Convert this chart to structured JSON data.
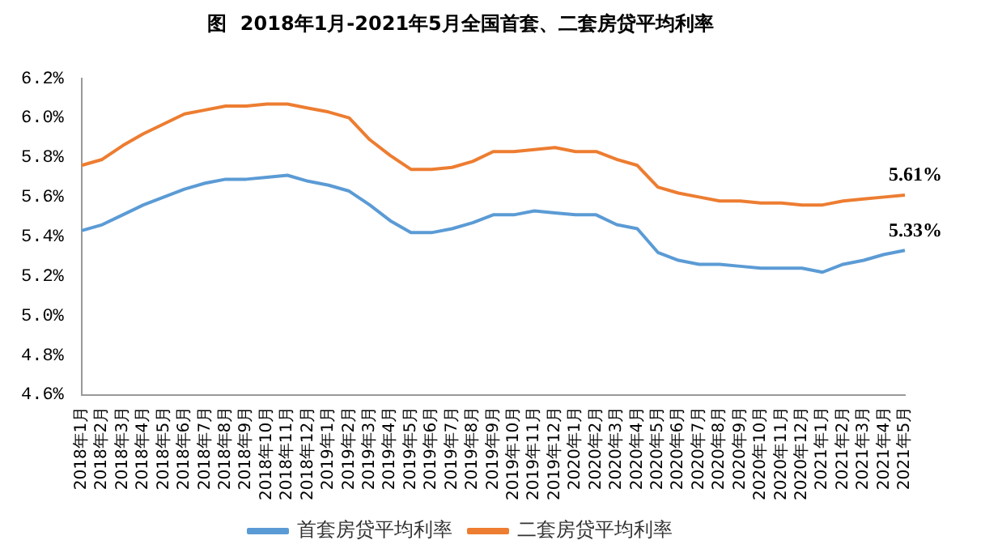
{
  "chart_data": {
    "type": "line",
    "title": "图  2018年1月-2021年5月全国首套、二套房贷平均利率",
    "categories": [
      "2018年1月",
      "2018年2月",
      "2018年3月",
      "2018年4月",
      "2018年5月",
      "2018年6月",
      "2018年7月",
      "2018年8月",
      "2018年9月",
      "2018年10月",
      "2018年11月",
      "2018年12月",
      "2019年1月",
      "2019年2月",
      "2019年3月",
      "2019年4月",
      "2019年5月",
      "2019年6月",
      "2019年7月",
      "2019年8月",
      "2019年9月",
      "2019年10月",
      "2019年11月",
      "2019年12月",
      "2020年1月",
      "2020年2月",
      "2020年3月",
      "2020年4月",
      "2020年5月",
      "2020年6月",
      "2020年7月",
      "2020年8月",
      "2020年9月",
      "2020年10月",
      "2020年11月",
      "2020年12月",
      "2021年1月",
      "2021年2月",
      "2021年3月",
      "2021年4月",
      "2021年5月"
    ],
    "series": [
      {
        "name": "首套房贷平均利率",
        "color": "#5b9bd5",
        "values": [
          5.43,
          5.46,
          5.51,
          5.56,
          5.6,
          5.64,
          5.67,
          5.69,
          5.69,
          5.7,
          5.71,
          5.68,
          5.66,
          5.63,
          5.56,
          5.48,
          5.42,
          5.42,
          5.44,
          5.47,
          5.51,
          5.51,
          5.53,
          5.52,
          5.51,
          5.51,
          5.46,
          5.44,
          5.32,
          5.28,
          5.26,
          5.26,
          5.25,
          5.24,
          5.24,
          5.24,
          5.22,
          5.26,
          5.28,
          5.31,
          5.33
        ]
      },
      {
        "name": "二套房贷平均利率",
        "color": "#ed7d31",
        "values": [
          5.76,
          5.79,
          5.86,
          5.92,
          5.97,
          6.02,
          6.04,
          6.06,
          6.06,
          6.07,
          6.07,
          6.05,
          6.03,
          6.0,
          5.89,
          5.81,
          5.74,
          5.74,
          5.75,
          5.78,
          5.83,
          5.83,
          5.84,
          5.85,
          5.83,
          5.83,
          5.79,
          5.76,
          5.65,
          5.62,
          5.6,
          5.58,
          5.58,
          5.57,
          5.57,
          5.56,
          5.56,
          5.58,
          5.59,
          5.6,
          5.61
        ]
      }
    ],
    "ylim": [
      4.6,
      6.2
    ],
    "yticks": [
      {
        "value": 4.6,
        "label": "4.6%"
      },
      {
        "value": 4.8,
        "label": "4.8%"
      },
      {
        "value": 5.0,
        "label": "5.0%"
      },
      {
        "value": 5.2,
        "label": "5.2%"
      },
      {
        "value": 5.4,
        "label": "5.4%"
      },
      {
        "value": 5.6,
        "label": "5.6%"
      },
      {
        "value": 5.8,
        "label": "5.8%"
      },
      {
        "value": 6.0,
        "label": "6.0%"
      },
      {
        "value": 6.2,
        "label": "6.2%"
      }
    ],
    "grid": false,
    "legend": "bottom",
    "marker": "none",
    "line_style": "solid",
    "annotations": [
      {
        "text": "5.61%",
        "x": "2021年5月",
        "y": 5.61
      },
      {
        "text": "5.33%",
        "x": "2021年5月",
        "y": 5.33
      }
    ]
  }
}
